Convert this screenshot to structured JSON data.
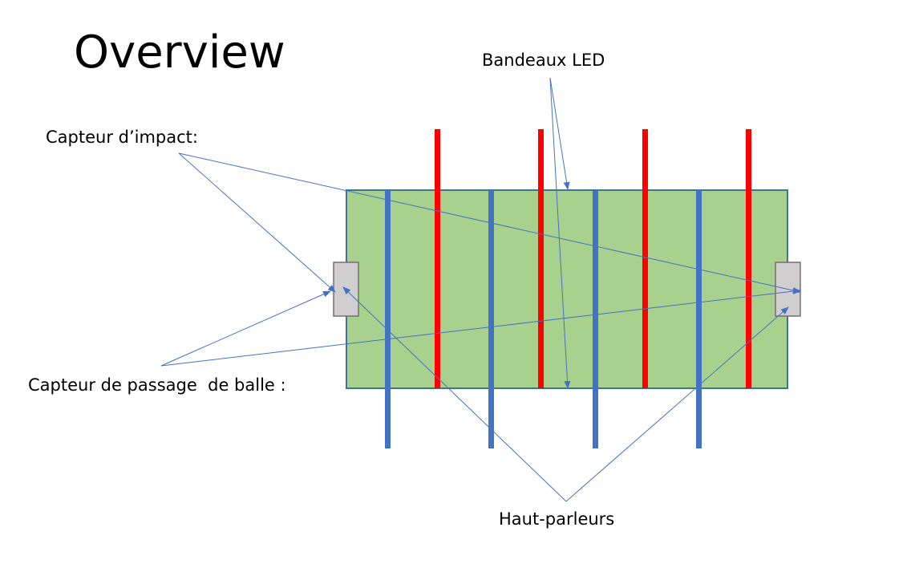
{
  "title": "Overview",
  "labels": {
    "led_strips": "Bandeaux LED",
    "impact_sensor": "Capteur d’impact:",
    "ball_passage_sensor": "Capteur de passage  de balle :",
    "speakers": "Haut-parleurs"
  },
  "colors": {
    "field": "#a9d18e",
    "field_border": "#41719c",
    "red_rod": "#ff0000",
    "blue_rod": "#4472c4",
    "sensor": "#d0cece",
    "sensor_border": "#767171",
    "arrow": "#4472c4"
  }
}
